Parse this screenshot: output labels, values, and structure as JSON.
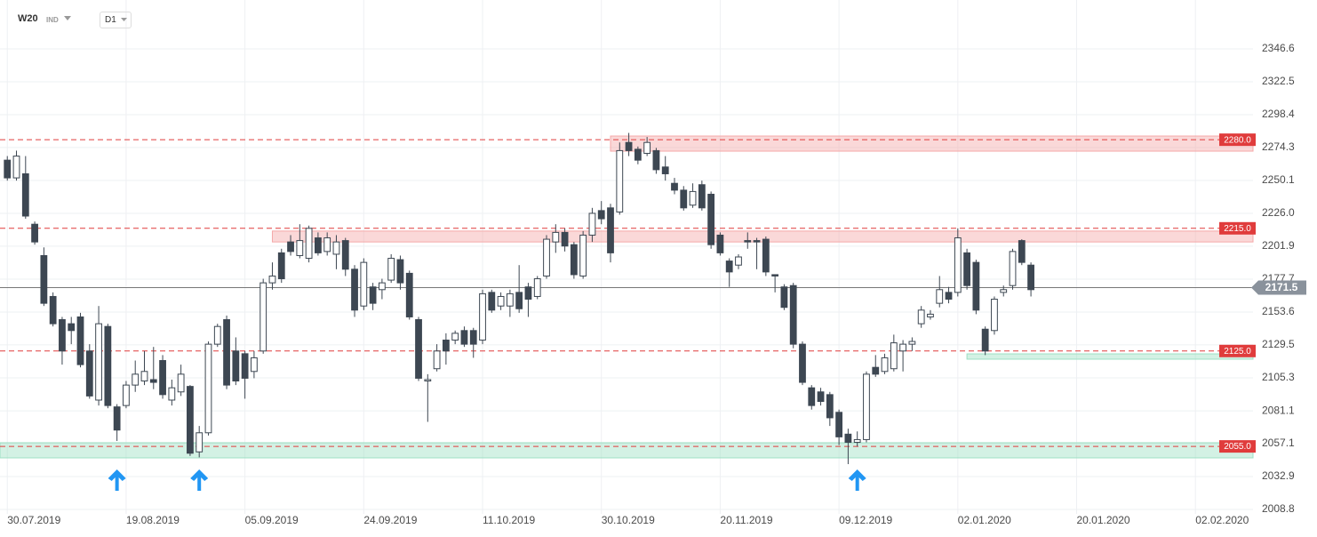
{
  "header": {
    "symbol": "W20",
    "market": "IND",
    "interval": "D1"
  },
  "chart_data": {
    "type": "candlestick",
    "x": [
      0,
      1,
      2,
      3,
      4,
      5,
      6,
      7,
      8,
      9,
      10,
      11,
      12,
      13,
      14,
      15,
      16,
      17,
      18,
      19,
      20,
      21,
      22,
      23,
      24,
      25,
      26,
      27,
      28,
      29,
      30,
      31,
      32,
      33,
      34,
      35,
      36,
      37,
      38,
      39,
      40,
      41,
      42,
      43,
      44,
      45,
      46,
      47,
      48,
      49,
      50,
      51,
      52,
      53,
      54,
      55,
      56,
      57,
      58,
      59,
      60,
      61,
      62,
      63,
      64,
      65,
      66,
      67,
      68,
      69,
      70,
      71,
      72,
      73,
      74,
      75,
      76,
      77,
      78,
      79,
      80,
      81,
      82,
      83,
      84,
      85,
      86,
      87,
      88,
      89,
      90,
      91,
      92,
      93,
      94,
      95,
      96,
      97,
      98,
      99,
      100,
      101,
      102,
      103,
      104,
      105,
      106,
      107,
      108,
      109,
      110,
      111,
      112
    ],
    "open": [
      2265,
      2252,
      2255,
      2218,
      2195,
      2165,
      2148,
      2145,
      2150,
      2125,
      2089,
      2143,
      2084,
      2085,
      2100,
      2103,
      2104,
      2118,
      2089,
      2095,
      2099,
      2051,
      2065,
      2130,
      2148,
      2125,
      2123,
      2110,
      2125,
      2175,
      2197,
      2205,
      2195,
      2193,
      2208,
      2198,
      2196,
      2206,
      2185,
      2158,
      2172,
      2170,
      2177,
      2192,
      2182,
      2148,
      2103,
      2112,
      2133,
      2133,
      2140,
      2140,
      2133,
      2168,
      2158,
      2158,
      2168,
      2172,
      2165,
      2180,
      2205,
      2212,
      2203,
      2180,
      2210,
      2228,
      2230,
      2227,
      2278,
      2273,
      2270,
      2272,
      2260,
      2248,
      2243,
      2232,
      2247,
      2240,
      2210,
      2191,
      2188,
      2206,
      2206,
      2207,
      2181,
      2172,
      2173,
      2130,
      2098,
      2095,
      2093,
      2080,
      2064,
      2058,
      2060,
      2113,
      2110,
      2112,
      2125,
      2130,
      2145,
      2150,
      2160,
      2168,
      2168,
      2197,
      2190,
      2141,
      2140,
      2168,
      2173,
      2206,
      2188
    ],
    "high": [
      2268,
      2272,
      2268,
      2220,
      2201,
      2168,
      2150,
      2150,
      2153,
      2130,
      2158,
      2145,
      2086,
      2103,
      2118,
      2125,
      2128,
      2122,
      2104,
      2115,
      2100,
      2070,
      2132,
      2145,
      2151,
      2135,
      2125,
      2125,
      2178,
      2190,
      2200,
      2210,
      2218,
      2217,
      2212,
      2212,
      2210,
      2208,
      2188,
      2193,
      2175,
      2178,
      2196,
      2195,
      2184,
      2150,
      2108,
      2130,
      2138,
      2140,
      2143,
      2142,
      2170,
      2170,
      2168,
      2170,
      2188,
      2175,
      2180,
      2210,
      2218,
      2215,
      2205,
      2213,
      2230,
      2235,
      2233,
      2278,
      2285,
      2275,
      2282,
      2274,
      2268,
      2252,
      2246,
      2248,
      2250,
      2242,
      2212,
      2193,
      2196,
      2212,
      2208,
      2209,
      2181,
      2174,
      2175,
      2132,
      2100,
      2098,
      2095,
      2082,
      2068,
      2066,
      2110,
      2122,
      2123,
      2137,
      2133,
      2135,
      2158,
      2155,
      2180,
      2172,
      2215,
      2200,
      2192,
      2143,
      2165,
      2173,
      2200,
      2207,
      2190
    ],
    "low": [
      2250,
      2250,
      2222,
      2203,
      2158,
      2143,
      2115,
      2130,
      2113,
      2090,
      2085,
      2083,
      2059,
      2083,
      2095,
      2100,
      2097,
      2090,
      2085,
      2092,
      2048,
      2047,
      2063,
      2128,
      2097,
      2100,
      2090,
      2105,
      2123,
      2170,
      2175,
      2195,
      2193,
      2190,
      2195,
      2195,
      2185,
      2180,
      2150,
      2155,
      2155,
      2163,
      2175,
      2170,
      2148,
      2103,
      2073,
      2110,
      2115,
      2130,
      2128,
      2120,
      2130,
      2153,
      2155,
      2150,
      2153,
      2150,
      2163,
      2178,
      2197,
      2198,
      2178,
      2178,
      2205,
      2218,
      2190,
      2225,
      2268,
      2262,
      2268,
      2255,
      2250,
      2240,
      2228,
      2230,
      2228,
      2200,
      2195,
      2172,
      2185,
      2200,
      2185,
      2180,
      2168,
      2155,
      2127,
      2100,
      2082,
      2085,
      2070,
      2056,
      2042,
      2055,
      2058,
      2106,
      2108,
      2110,
      2110,
      2125,
      2142,
      2148,
      2157,
      2160,
      2165,
      2170,
      2152,
      2122,
      2137,
      2165,
      2170,
      2188,
      2165
    ],
    "close": [
      2252,
      2268,
      2224,
      2205,
      2160,
      2145,
      2125,
      2140,
      2115,
      2092,
      2145,
      2085,
      2067,
      2100,
      2108,
      2110,
      2102,
      2093,
      2098,
      2108,
      2050,
      2065,
      2130,
      2143,
      2100,
      2103,
      2105,
      2120,
      2175,
      2180,
      2178,
      2198,
      2206,
      2215,
      2197,
      2208,
      2205,
      2185,
      2155,
      2190,
      2160,
      2175,
      2193,
      2175,
      2150,
      2105,
      2104,
      2125,
      2125,
      2138,
      2130,
      2130,
      2167,
      2155,
      2165,
      2167,
      2156,
      2163,
      2178,
      2207,
      2212,
      2202,
      2181,
      2210,
      2226,
      2222,
      2197,
      2272,
      2272,
      2265,
      2278,
      2258,
      2255,
      2243,
      2230,
      2242,
      2230,
      2203,
      2197,
      2183,
      2194,
      2205,
      2205,
      2183,
      2180,
      2157,
      2130,
      2102,
      2085,
      2088,
      2076,
      2062,
      2058,
      2060,
      2108,
      2108,
      2120,
      2131,
      2130,
      2132,
      2155,
      2152,
      2170,
      2163,
      2208,
      2173,
      2155,
      2125,
      2163,
      2170,
      2198,
      2190,
      2170
    ],
    "xlim": [
      -0.8,
      136.3
    ],
    "xticks": [
      {
        "value": 0,
        "label": "30.07.2019"
      },
      {
        "value": 13,
        "label": "19.08.2019"
      },
      {
        "value": 26,
        "label": "05.09.2019"
      },
      {
        "value": 39,
        "label": "24.09.2019"
      },
      {
        "value": 52,
        "label": "11.10.2019"
      },
      {
        "value": 65,
        "label": "30.10.2019"
      },
      {
        "value": 78,
        "label": "20.11.2019"
      },
      {
        "value": 91,
        "label": "09.12.2019"
      },
      {
        "value": 104,
        "label": "02.01.2020"
      },
      {
        "value": 117,
        "label": "20.01.2020"
      },
      {
        "value": 130,
        "label": "02.02.2020"
      }
    ],
    "ylim": [
      2005.5,
      2382.5
    ],
    "yticks": [
      2008.8,
      2032.9,
      2057.1,
      2081.1,
      2105.3,
      2129.5,
      2153.6,
      2177.7,
      2201.9,
      {
        "value": 2226,
        "label": "2226.0"
      },
      2250.1,
      2274.3,
      2298.4,
      2322.5,
      2346.6
    ],
    "grid": true,
    "up_color": "#ffffff",
    "down_color": "#3d4752",
    "levels": [
      {
        "value": 2280,
        "label": "2280.0"
      },
      {
        "value": 2215,
        "label": "2215.0"
      },
      {
        "value": 2125,
        "label": "2125.0"
      },
      {
        "value": 2055,
        "label": "2055.0"
      }
    ],
    "level_color": "#e03c3c",
    "zones": [
      {
        "from": 2271.6,
        "to": 2282.7,
        "start": 66,
        "color": "#f4a9a9"
      },
      {
        "from": 2205,
        "to": 2213,
        "start": 29,
        "color": "#f4a9a9"
      },
      {
        "from": 2119,
        "to": 2122.9,
        "start": 105,
        "color": "#9ee0c4"
      },
      {
        "from": 2046.6,
        "to": 2057.7,
        "start": -0.8,
        "color": "#9ee0c4"
      }
    ],
    "last_price": 2171.5,
    "arrows": [
      12,
      21,
      93
    ],
    "arrow_color": "#2196f3"
  }
}
